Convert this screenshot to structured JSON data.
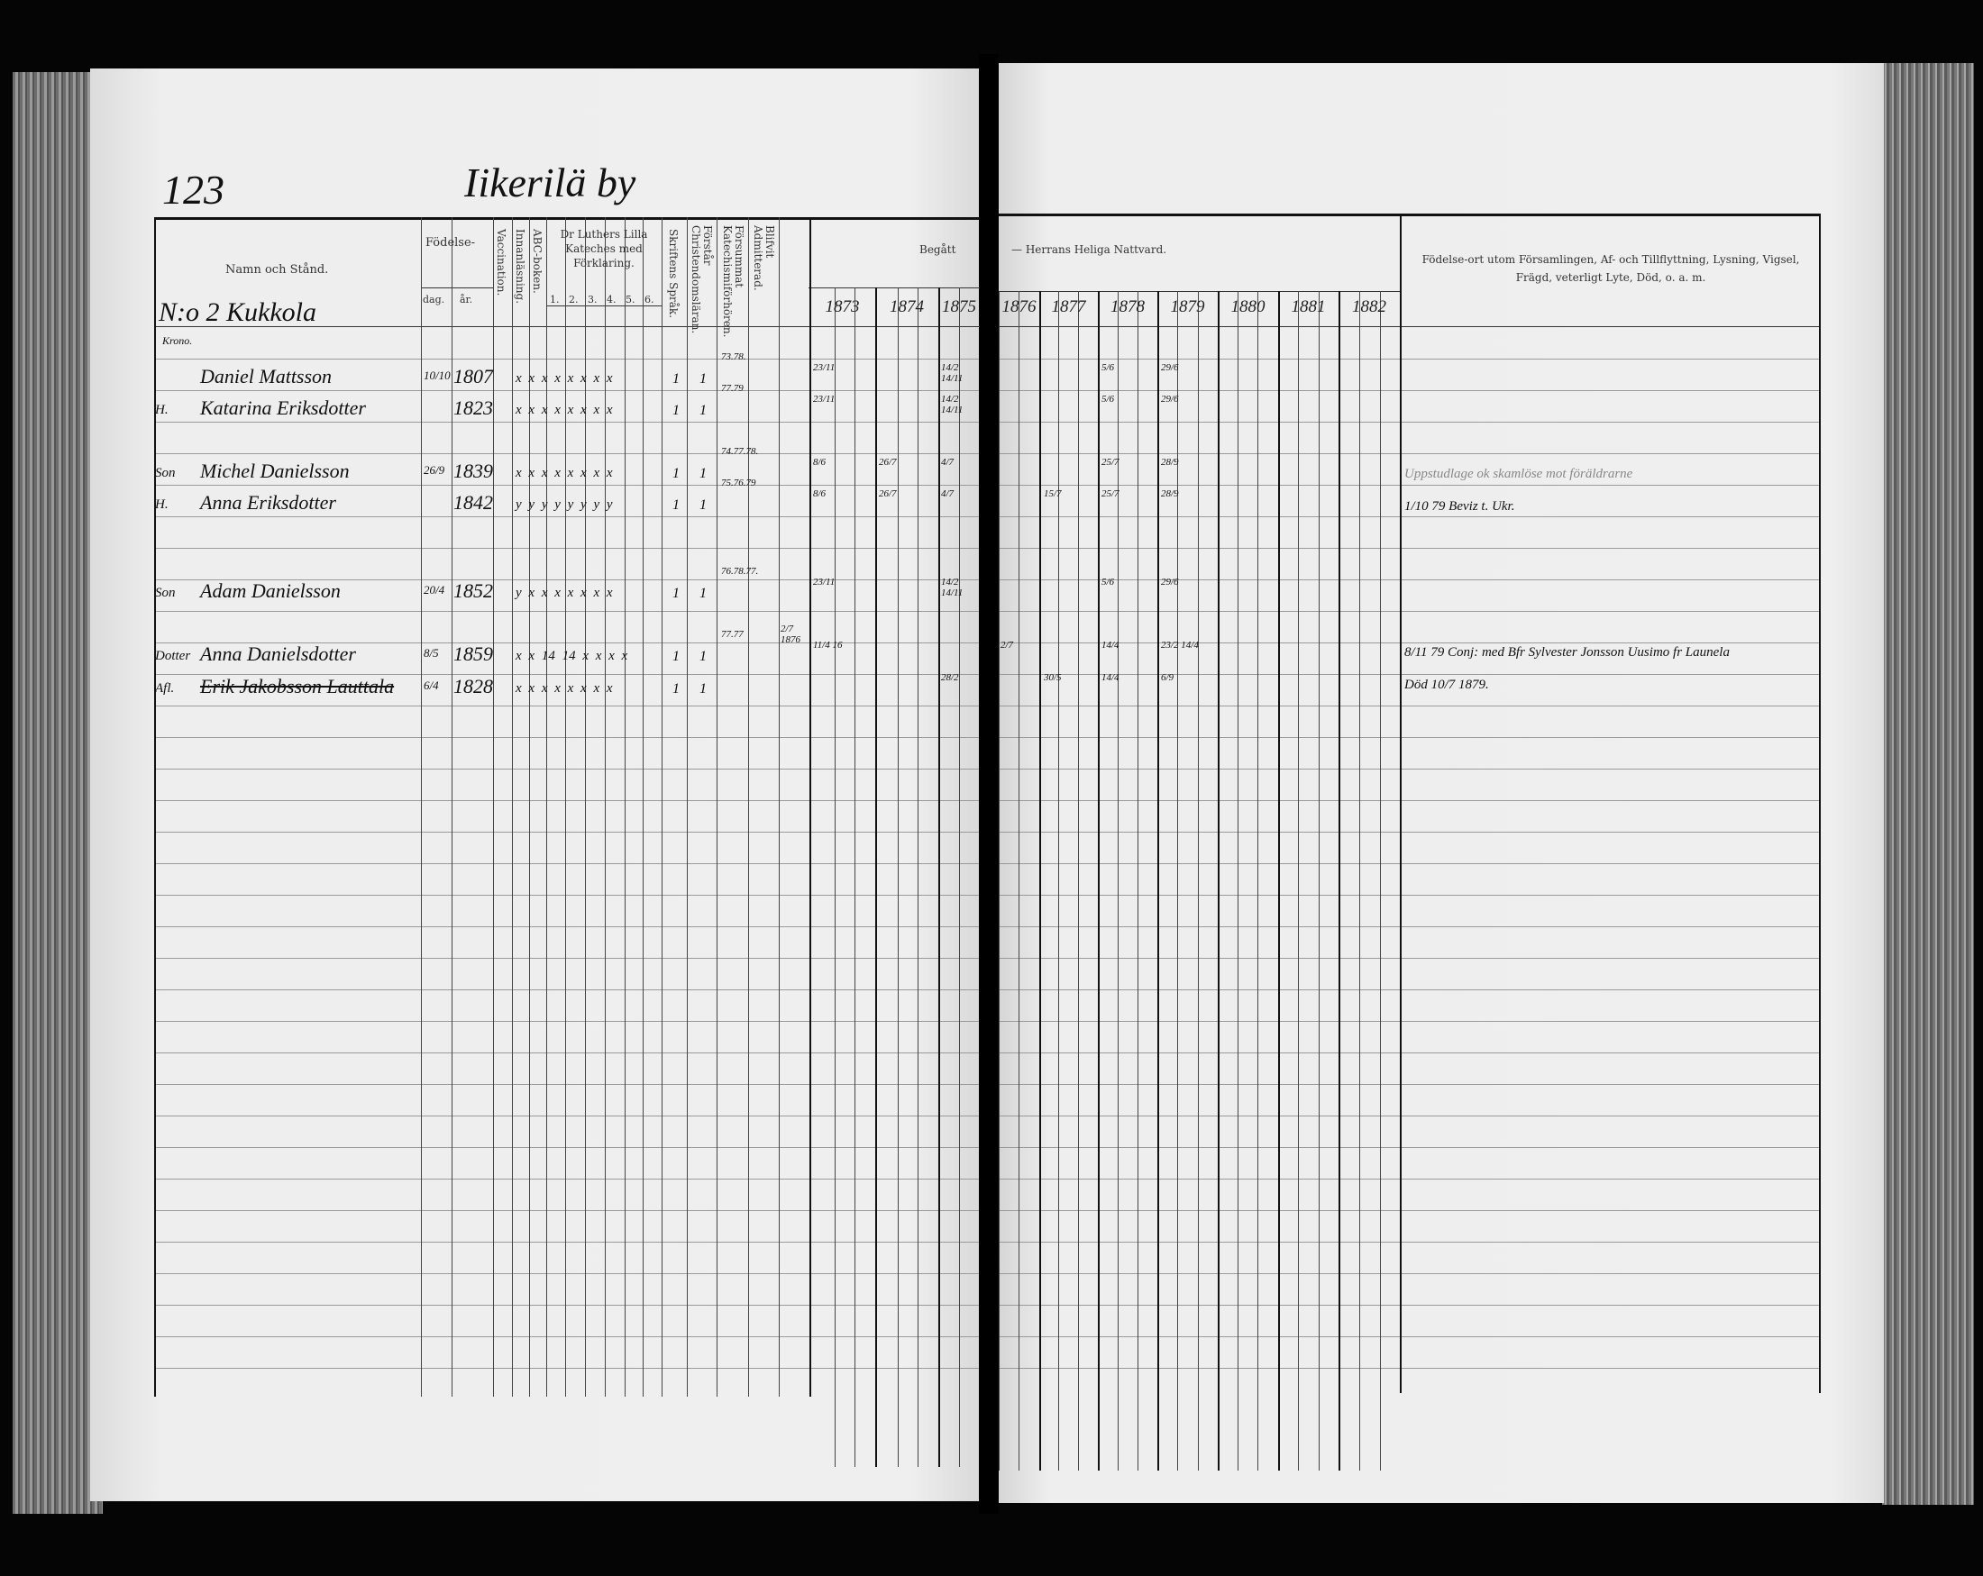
{
  "page_number": "123",
  "village": "Iikerilä by",
  "household": "N:o 2 Kukkola",
  "household_note": "Krono.",
  "headers": {
    "name": "Namn och Stånd.",
    "birth": "Födelse-",
    "day": "dag.",
    "year": "år.",
    "vaccination": "Vaccination.",
    "reading": "Innanläsning.",
    "abc": "ABC-boken.",
    "catechism": "Dr Luthers Lilla Kateches med Förklaring.",
    "cat_parts": [
      "1.",
      "2.",
      "3.",
      "4.",
      "5.",
      "6."
    ],
    "scripture": "Skriftens Språk.",
    "christianity": "Förstår Christendomsläran.",
    "missed": "Försummat Katechismiförhören.",
    "admitted": "Blifvit Admitterad.",
    "communion_left": "Begått",
    "communion_right": "— Herrans Heliga Nattvard.",
    "remarks": "Födelse-ort utom Församlingen, Af- och Tillflyttning, Lysning, Vigsel, Frägd, veterligt Lyte, Död, o. a. m."
  },
  "years": [
    "1873",
    "1874",
    "1875",
    "1876",
    "1877",
    "1878",
    "1879",
    "1880",
    "1881",
    "1882"
  ],
  "rows": [
    {
      "prefix": "",
      "name": "Daniel Mattsson",
      "day": "10/10",
      "year": "1807",
      "marks": "x x x x x x x x",
      "skrift": "1",
      "christ": "1",
      "missed": "73.78.",
      "comm": [
        "23/11",
        "",
        "14/2 14/11",
        "",
        "",
        "5/6",
        "29/6",
        "",
        "",
        ""
      ],
      "remark": ""
    },
    {
      "prefix": "H.",
      "name": "Katarina Eriksdotter",
      "day": "",
      "year": "1823",
      "marks": "x x x x x x x x",
      "skrift": "1",
      "christ": "1",
      "missed": "77.79",
      "comm": [
        "23/11",
        "",
        "14/2 14/11",
        "",
        "",
        "5/6",
        "29/6",
        "",
        "",
        ""
      ],
      "remark": ""
    },
    {
      "prefix": "Son",
      "name": "Michel Danielsson",
      "day": "26/9",
      "year": "1839",
      "marks": "x x x x x x x x",
      "skrift": "1",
      "christ": "1",
      "missed": "74.77.78.",
      "comm": [
        "8/6",
        "26/7",
        "4/7",
        "",
        "",
        "25/7",
        "28/9",
        "",
        "",
        ""
      ],
      "remark": "Uppstudlage ok skamlöse mot föräldrarne"
    },
    {
      "prefix": "H.",
      "name": "Anna Eriksdotter",
      "day": "",
      "year": "1842",
      "marks": "y y y y y y y y",
      "skrift": "1",
      "christ": "1",
      "missed": "75.76.79",
      "comm": [
        "8/6",
        "26/7",
        "4/7",
        "",
        "15/7",
        "25/7",
        "28/9",
        "",
        "",
        ""
      ],
      "remark": "1/10 79 Beviz t. Ukr."
    },
    {
      "prefix": "Son",
      "name": "Adam Danielsson",
      "day": "20/4",
      "year": "1852",
      "marks": "y x x x x x x x",
      "skrift": "1",
      "christ": "1",
      "missed": "76.78.77.",
      "comm": [
        "23/11",
        "",
        "14/2 14/11",
        "",
        "",
        "5/6",
        "29/6",
        "",
        "",
        ""
      ],
      "remark": ""
    },
    {
      "prefix": "Dotter",
      "name": "Anna Danielsdotter",
      "day": "8/5",
      "year": "1859",
      "marks": "x x 14 14 x x x x",
      "skrift": "1",
      "christ": "1",
      "missed": "77.77",
      "admitted": "2/7 1876",
      "comm": [
        "11/4 16",
        "",
        "",
        "2/7",
        "",
        "14/4",
        "23/2 14/4",
        "",
        "",
        ""
      ],
      "remark": "8/11 79 Conj: med Bfr Sylvester Jonsson Uusimo fr Launela"
    },
    {
      "prefix": "Afl.",
      "name": "Erik Jakobsson Lauttala",
      "day": "6/4",
      "year": "1828",
      "marks": "x x x x x x x x",
      "skrift": "1",
      "christ": "1",
      "missed": "",
      "comm": [
        "",
        "",
        "28/2",
        "",
        "30/5",
        "14/4",
        "6/9",
        "",
        "",
        ""
      ],
      "remark": "Död 10/7 1879.",
      "struck": true
    }
  ]
}
